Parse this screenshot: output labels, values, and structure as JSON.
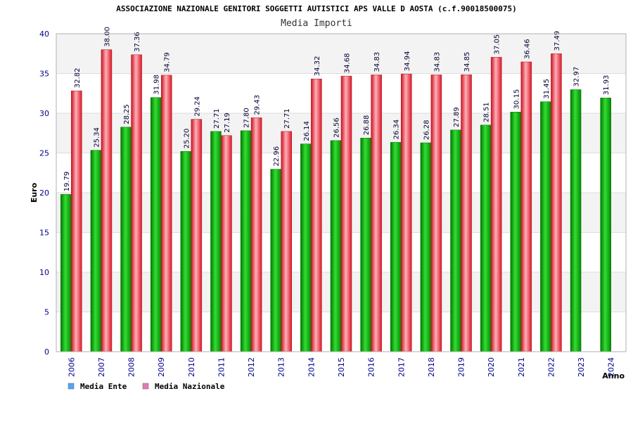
{
  "chart_data": {
    "type": "bar",
    "title": "ASSOCIAZIONE NAZIONALE GENITORI SOGGETTI AUTISTICI APS VALLE D AOSTA (c.f.90018500075)",
    "subtitle": "Media Importi",
    "xlabel": "Anno",
    "ylabel": "Euro",
    "ylim": [
      0,
      40
    ],
    "yticks": [
      "0",
      "5",
      "10",
      "15",
      "20",
      "25",
      "30",
      "35",
      "40"
    ],
    "grid": true,
    "legend_position": "bottom-left",
    "categories": [
      "2006",
      "2007",
      "2008",
      "2009",
      "2010",
      "2011",
      "2012",
      "2013",
      "2014",
      "2015",
      "2016",
      "2017",
      "2018",
      "2019",
      "2020",
      "2021",
      "2022",
      "2023",
      "2024"
    ],
    "series": [
      {
        "name": "Media Ente",
        "color": "#00aa00",
        "legend_color": "#4da6ff",
        "values": [
          19.79,
          25.34,
          28.25,
          31.98,
          25.2,
          27.71,
          27.8,
          22.96,
          26.14,
          26.56,
          26.88,
          26.34,
          26.28,
          27.89,
          28.51,
          30.15,
          31.45,
          32.97,
          31.93
        ],
        "labels": [
          "19.79",
          "25.34",
          "28.25",
          "31.98",
          "25.20",
          "27.71",
          "27.80",
          "22.96",
          "26.14",
          "26.56",
          "26.88",
          "26.34",
          "26.28",
          "27.89",
          "28.51",
          "30.15",
          "31.45",
          "32.97",
          "31.93"
        ]
      },
      {
        "name": "Media Nazionale",
        "color": "#e8262e",
        "legend_color": "#e37ab5",
        "values": [
          32.82,
          38.0,
          37.36,
          34.79,
          29.24,
          27.19,
          29.43,
          27.71,
          34.32,
          34.68,
          34.83,
          34.94,
          34.83,
          34.85,
          37.05,
          36.46,
          37.49,
          null,
          null
        ],
        "labels": [
          "32.82",
          "38.00",
          "37.36",
          "34.79",
          "29.24",
          "27.19",
          "29.43",
          "27.71",
          "34.32",
          "34.68",
          "34.83",
          "34.94",
          "34.83",
          "34.85",
          "37.05",
          "36.46",
          "37.49",
          null,
          null
        ]
      }
    ]
  }
}
